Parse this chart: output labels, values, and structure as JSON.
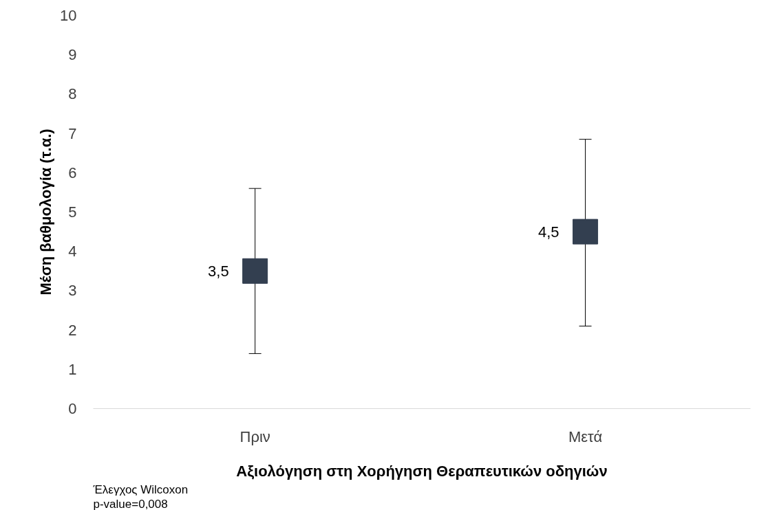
{
  "chart_data": {
    "type": "scatter",
    "xlabel": "Αξιολόγηση στη Χορήγηση Θεραπευτικών οδηγιών",
    "ylabel": "Μέση βαθμολογία (τ.α.)",
    "categories": [
      "Πριν",
      "Μετά"
    ],
    "values": [
      3.5,
      4.5
    ],
    "errors": [
      [
        1.4,
        5.6
      ],
      [
        2.1,
        6.85
      ]
    ],
    "value_labels": [
      "3,5",
      "4,5"
    ],
    "color": "#333f50",
    "marker": "square",
    "ylim": [
      0,
      10
    ],
    "yticks": [
      0,
      1,
      2,
      3,
      4,
      5,
      6,
      7,
      8,
      9,
      10
    ],
    "grid": false,
    "annotations": [
      "Έλεγχος Wilcoxon",
      "p-value=0,008"
    ]
  }
}
